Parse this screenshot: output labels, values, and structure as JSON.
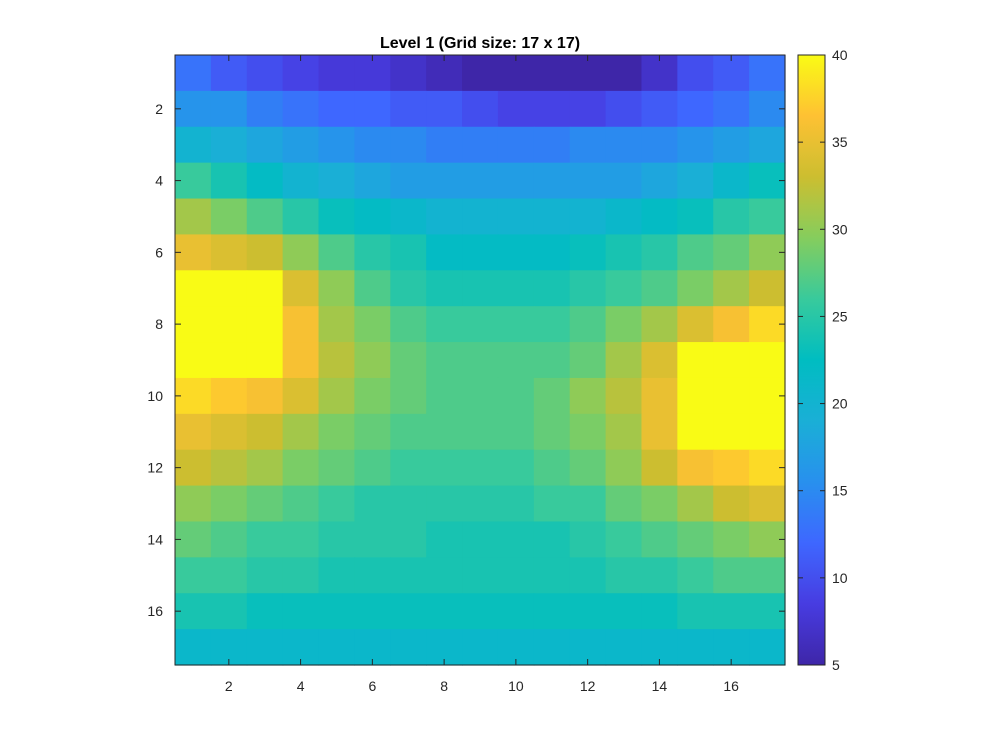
{
  "chart_data": {
    "type": "heatmap",
    "title": "Level 1 (Grid size: 17 x 17)",
    "xlabel": "",
    "ylabel": "",
    "x": [
      1,
      2,
      3,
      4,
      5,
      6,
      7,
      8,
      9,
      10,
      11,
      12,
      13,
      14,
      15,
      16,
      17
    ],
    "y": [
      1,
      2,
      3,
      4,
      5,
      6,
      7,
      8,
      9,
      10,
      11,
      12,
      13,
      14,
      15,
      16,
      17
    ],
    "xlim": [
      0.5,
      17.5
    ],
    "ylim": [
      0.5,
      17.5
    ],
    "y_direction": "reverse",
    "xticks": [
      2,
      4,
      6,
      8,
      10,
      12,
      14,
      16
    ],
    "yticks": [
      2,
      4,
      6,
      8,
      10,
      12,
      14,
      16
    ],
    "colorbar": {
      "limits": [
        5,
        40
      ],
      "ticks": [
        5,
        10,
        15,
        20,
        25,
        30,
        35,
        40
      ],
      "colormap": "parula"
    },
    "values": [
      [
        13,
        11,
        10,
        9,
        8,
        8,
        7,
        6,
        5,
        5,
        5,
        5,
        5,
        7,
        10,
        11,
        13
      ],
      [
        16,
        16,
        14,
        13,
        12,
        12,
        11,
        11,
        10,
        9,
        9,
        9,
        10,
        11,
        12,
        13,
        15
      ],
      [
        20,
        19,
        18,
        17,
        16,
        15,
        15,
        14,
        14,
        14,
        14,
        15,
        15,
        15,
        16,
        17,
        18
      ],
      [
        26,
        24,
        22,
        20,
        19,
        18,
        17,
        17,
        17,
        17,
        17,
        17,
        17,
        18,
        19,
        21,
        23
      ],
      [
        31,
        29,
        27,
        25,
        23,
        22,
        21,
        20,
        20,
        20,
        20,
        20,
        21,
        22,
        23,
        25,
        26
      ],
      [
        35,
        34,
        33,
        30,
        27,
        25,
        24,
        22,
        22,
        22,
        22,
        23,
        24,
        25,
        27,
        28,
        30
      ],
      [
        40,
        40,
        40,
        34,
        30,
        27,
        25,
        24,
        24,
        24,
        24,
        25,
        26,
        27,
        29,
        31,
        33
      ],
      [
        40,
        40,
        40,
        36,
        31,
        29,
        27,
        26,
        26,
        26,
        26,
        27,
        29,
        31,
        34,
        36,
        38
      ],
      [
        40,
        40,
        40,
        36,
        32,
        30,
        28,
        27,
        27,
        27,
        27,
        28,
        31,
        34,
        40,
        40,
        40
      ],
      [
        38,
        37,
        36,
        34,
        31,
        29,
        28,
        27,
        27,
        27,
        28,
        30,
        32,
        35,
        40,
        40,
        40
      ],
      [
        35,
        34,
        33,
        31,
        29,
        28,
        27,
        27,
        27,
        27,
        28,
        29,
        31,
        35,
        40,
        40,
        40
      ],
      [
        33,
        32,
        31,
        29,
        28,
        27,
        26,
        26,
        26,
        26,
        27,
        28,
        30,
        33,
        36,
        37,
        38
      ],
      [
        30,
        29,
        28,
        27,
        26,
        25,
        25,
        25,
        25,
        25,
        26,
        26,
        28,
        29,
        31,
        33,
        34
      ],
      [
        28,
        27,
        26,
        26,
        25,
        25,
        25,
        24,
        24,
        24,
        24,
        25,
        26,
        27,
        28,
        29,
        30
      ],
      [
        26,
        26,
        25,
        25,
        24,
        24,
        24,
        24,
        24,
        24,
        24,
        24,
        25,
        25,
        26,
        27,
        27
      ],
      [
        24,
        24,
        23,
        23,
        23,
        23,
        23,
        23,
        23,
        23,
        23,
        23,
        23,
        23,
        24,
        24,
        24
      ],
      [
        21,
        21,
        21,
        21,
        21,
        21,
        21,
        21,
        21,
        21,
        21,
        21,
        21,
        21,
        21,
        21,
        21
      ]
    ]
  }
}
